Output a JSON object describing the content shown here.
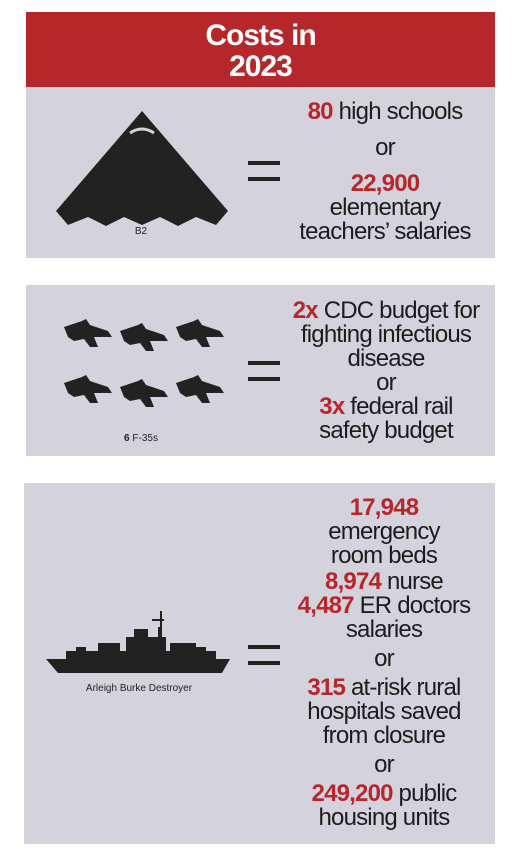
{
  "header": {
    "title_line1": "Costs in",
    "title_line2": "2023"
  },
  "panels": [
    {
      "image_icon": "stealth-bomber-icon",
      "caption": "B2",
      "lines": [
        {
          "num": "80",
          "text": " high schools"
        },
        {
          "text": "or"
        },
        {
          "num": "22,900"
        },
        {
          "text": "elementary"
        },
        {
          "text": "teachers’ salaries"
        }
      ]
    },
    {
      "image_icon": "fighter-jet-icon",
      "caption_count": "6",
      "caption_label": " F-35s",
      "lines": [
        {
          "num": "2x",
          "text": " CDC budget for"
        },
        {
          "text": "fighting infectious"
        },
        {
          "text": "disease"
        },
        {
          "text": "or"
        },
        {
          "num": "3x",
          "text": " federal rail"
        },
        {
          "text": "safety budget"
        }
      ]
    },
    {
      "image_icon": "destroyer-ship-icon",
      "caption": "Arleigh Burke Destroyer",
      "lines": [
        {
          "num": "17,948"
        },
        {
          "text": "emergency"
        },
        {
          "text": "room beds"
        },
        {
          "num": "8,974",
          "text": " nurse"
        },
        {
          "num": "4,487",
          "text": " ER doctors"
        },
        {
          "text": "salaries"
        },
        {
          "text": "or"
        },
        {
          "num": "315",
          "text": " at-risk rural"
        },
        {
          "text": "hospitals saved"
        },
        {
          "text": "from closure"
        },
        {
          "text": "or"
        },
        {
          "num": "249,200",
          "text": " public"
        },
        {
          "text": "housing units"
        }
      ]
    }
  ],
  "colors": {
    "accent": "#b5272b",
    "panel": "#d4d3dd",
    "text": "#1c1c1c",
    "heading_blue": "#1a3f7c"
  }
}
